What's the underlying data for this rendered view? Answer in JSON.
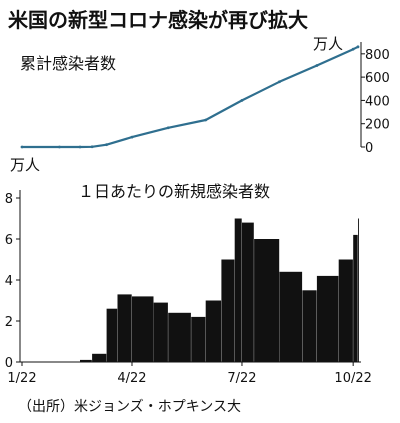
{
  "title": "米国の新型コロナ感染が再び拡大",
  "source": "（出所）米ジョンズ・ホプキンス大",
  "colors": {
    "line": "#2f6f8f",
    "bar": "#111111",
    "axis": "#111111"
  },
  "chart_data": [
    {
      "type": "line",
      "title": "累計感染者数",
      "unit": "万人",
      "ylim": [
        0,
        850
      ],
      "y_ticks": [
        "800",
        "600",
        "400",
        "200",
        "0"
      ],
      "x_ticks": [
        "1/22",
        "4/22",
        "7/22",
        "10/22"
      ],
      "x_range": [
        "1/22",
        "10/26"
      ],
      "series": [
        {
          "x": [
            "1/22",
            "2/22",
            "3/10",
            "3/20",
            "4/1",
            "4/22",
            "5/22",
            "6/22",
            "7/22",
            "8/22",
            "9/22",
            "10/22",
            "10/26"
          ],
          "values": [
            0,
            0,
            0.1,
            2,
            20,
            85,
            165,
            232,
            400,
            560,
            700,
            840,
            860
          ]
        }
      ]
    },
    {
      "type": "bar",
      "title": "１日あたりの新規感染者数",
      "unit": "万人",
      "ylim": [
        0,
        8
      ],
      "y_ticks": [
        "8",
        "6",
        "4",
        "2",
        "0"
      ],
      "x_ticks": [
        "1/22",
        "4/22",
        "7/22",
        "10/22"
      ],
      "x_range": [
        "1/22",
        "10/26"
      ],
      "series": [
        {
          "x": [
            "1/22",
            "2/22",
            "3/10",
            "3/20",
            "4/1",
            "4/10",
            "4/22",
            "5/10",
            "5/22",
            "6/10",
            "6/22",
            "7/5",
            "7/16",
            "7/22",
            "8/1",
            "8/22",
            "9/10",
            "9/22",
            "10/10",
            "10/22",
            "10/26"
          ],
          "values": [
            0,
            0,
            0.1,
            0.4,
            2.6,
            3.3,
            3.2,
            2.9,
            2.4,
            2.2,
            3.0,
            5.0,
            7.0,
            6.8,
            6.0,
            4.4,
            3.5,
            4.2,
            5.0,
            6.2,
            7.0
          ]
        }
      ]
    }
  ]
}
